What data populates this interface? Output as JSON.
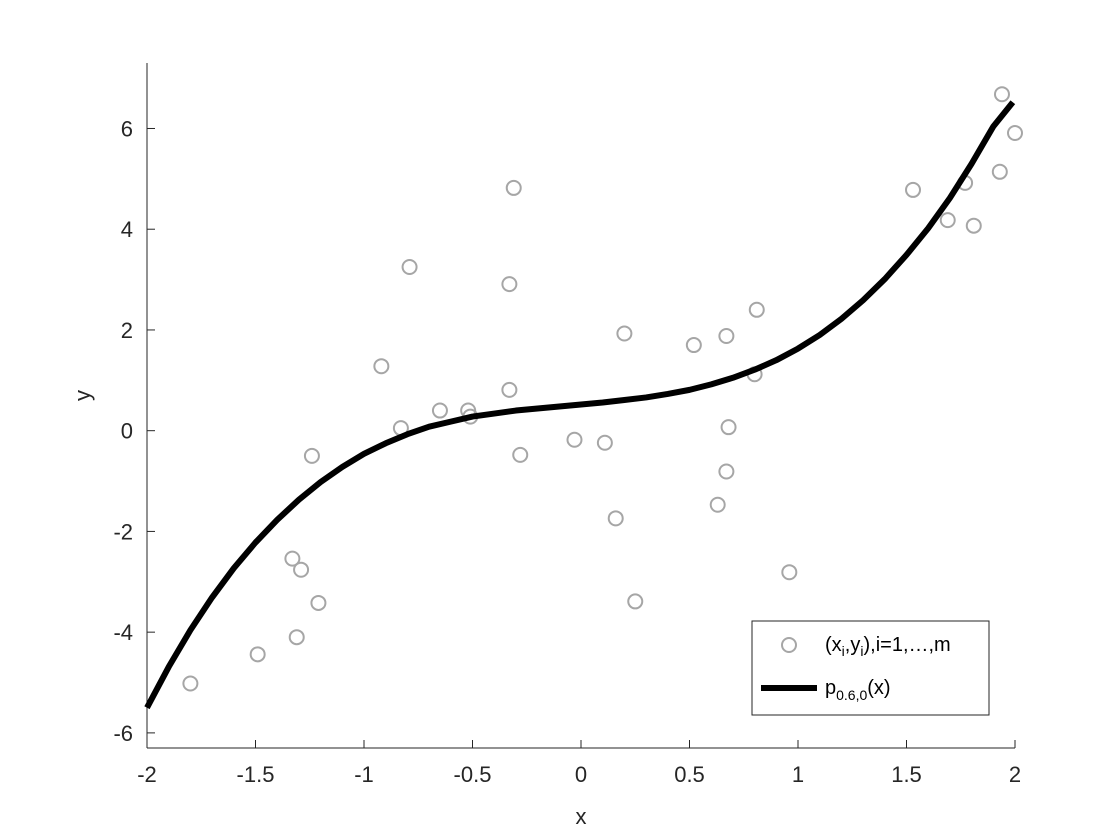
{
  "chart_data": {
    "type": "scatter",
    "xlabel": "x",
    "ylabel": "y",
    "xlim": [
      -2,
      2
    ],
    "ylim": [
      -6.3,
      7.3
    ],
    "grid": false,
    "legend_position": "bottom-right",
    "x_ticks": [
      -2,
      -1.5,
      -1,
      -0.5,
      0,
      0.5,
      1,
      1.5,
      2
    ],
    "x_tick_labels": [
      "-2",
      "-1.5",
      "-1",
      "-0.5",
      "0",
      "0.5",
      "1",
      "1.5",
      "2"
    ],
    "y_ticks": [
      -6,
      -4,
      -2,
      0,
      2,
      4,
      6
    ],
    "y_tick_labels": [
      "-6",
      "-4",
      "-2",
      "0",
      "2",
      "4",
      "6"
    ],
    "colors": {
      "points": "#a6a6a6",
      "curve": "#000000",
      "axis": "#262626"
    },
    "series": [
      {
        "type": "scatter",
        "marker": "open-circle",
        "legend": {
          "base": "(x",
          "sub1": "i",
          "mid": ",y",
          "sub2": "i",
          "tail": "),i=1,…,m"
        },
        "points": [
          [
            -1.8,
            -5.02
          ],
          [
            -1.49,
            -4.44
          ],
          [
            -1.31,
            -4.1
          ],
          [
            -1.33,
            -2.54
          ],
          [
            -1.29,
            -2.76
          ],
          [
            -1.21,
            -3.42
          ],
          [
            -1.24,
            -0.5
          ],
          [
            -0.92,
            1.28
          ],
          [
            -0.83,
            0.05
          ],
          [
            -0.79,
            3.25
          ],
          [
            -0.65,
            0.4
          ],
          [
            -0.52,
            0.4
          ],
          [
            -0.51,
            0.28
          ],
          [
            -0.33,
            0.81
          ],
          [
            -0.33,
            2.91
          ],
          [
            -0.31,
            4.82
          ],
          [
            -0.28,
            -0.48
          ],
          [
            -0.03,
            -0.18
          ],
          [
            0.11,
            -0.24
          ],
          [
            0.16,
            -1.74
          ],
          [
            0.2,
            1.93
          ],
          [
            0.25,
            -3.39
          ],
          [
            0.52,
            1.7
          ],
          [
            0.63,
            -1.47
          ],
          [
            0.67,
            1.88
          ],
          [
            0.67,
            -0.81
          ],
          [
            0.68,
            0.07
          ],
          [
            0.8,
            1.12
          ],
          [
            0.81,
            2.4
          ],
          [
            0.96,
            -2.81
          ],
          [
            1.53,
            4.78
          ],
          [
            1.69,
            4.18
          ],
          [
            1.77,
            4.92
          ],
          [
            1.81,
            4.07
          ],
          [
            1.93,
            5.14
          ],
          [
            1.94,
            6.68
          ],
          [
            2.0,
            5.91
          ]
        ]
      },
      {
        "type": "line",
        "legend": {
          "base": "p",
          "sub": "0.6,0",
          "tail": "(x)"
        },
        "x": [
          -2.0,
          -1.9,
          -1.8,
          -1.7,
          -1.6,
          -1.5,
          -1.4,
          -1.3,
          -1.2,
          -1.1,
          -1.0,
          -0.9,
          -0.8,
          -0.7,
          -0.6,
          -0.5,
          -0.4,
          -0.3,
          -0.2,
          -0.1,
          0.0,
          0.1,
          0.2,
          0.3,
          0.4,
          0.5,
          0.6,
          0.7,
          0.8,
          0.9,
          1.0,
          1.1,
          1.2,
          1.3,
          1.4,
          1.5,
          1.6,
          1.7,
          1.8,
          1.9,
          1.99
        ],
        "y": [
          -5.5,
          -4.69,
          -3.96,
          -3.31,
          -2.73,
          -2.22,
          -1.77,
          -1.37,
          -1.02,
          -0.72,
          -0.46,
          -0.25,
          -0.07,
          0.08,
          0.18,
          0.28,
          0.34,
          0.4,
          0.44,
          0.48,
          0.52,
          0.56,
          0.61,
          0.66,
          0.73,
          0.81,
          0.92,
          1.05,
          1.21,
          1.4,
          1.63,
          1.9,
          2.22,
          2.59,
          3.01,
          3.49,
          4.02,
          4.62,
          5.3,
          6.04,
          6.52
        ]
      }
    ]
  }
}
